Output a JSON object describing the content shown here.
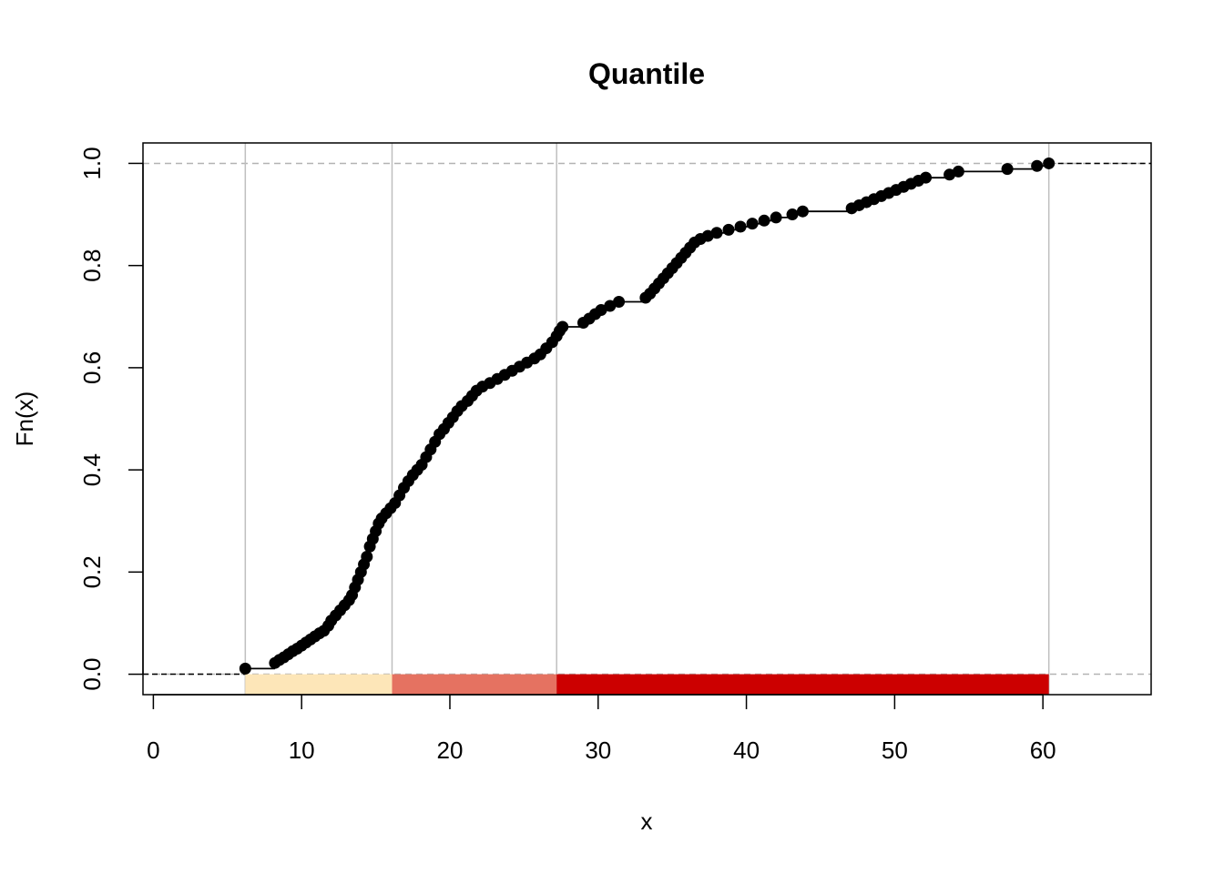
{
  "chart_data": {
    "type": "ecdf",
    "title": "Quantile",
    "xlabel": "x",
    "ylabel": "Fn(x)",
    "xlim": [
      -0.7,
      67.3
    ],
    "ylim": [
      -0.04,
      1.04
    ],
    "x_ticks": [
      0,
      10,
      20,
      30,
      40,
      50,
      60
    ],
    "x_tick_labels": [
      "0",
      "10",
      "20",
      "30",
      "40",
      "50",
      "60"
    ],
    "y_ticks": [
      0.0,
      0.2,
      0.4,
      0.6,
      0.8,
      1.0
    ],
    "y_tick_labels": [
      "0.0",
      "0.2",
      "0.4",
      "0.6",
      "0.8",
      "1.0"
    ],
    "reference_lines_y": [
      0.0,
      1.0
    ],
    "breaks": [
      6.2,
      16.1,
      27.2,
      60.4
    ],
    "class_colors": [
      "#FDE6B8",
      "#E57261",
      "#CC0000"
    ],
    "points": [
      [
        6.2,
        0.011
      ],
      [
        8.2,
        0.022
      ],
      [
        8.5,
        0.028
      ],
      [
        8.8,
        0.033
      ],
      [
        9.1,
        0.039
      ],
      [
        9.4,
        0.045
      ],
      [
        9.7,
        0.05
      ],
      [
        10.0,
        0.056
      ],
      [
        10.3,
        0.062
      ],
      [
        10.6,
        0.068
      ],
      [
        10.9,
        0.074
      ],
      [
        11.2,
        0.08
      ],
      [
        11.5,
        0.085
      ],
      [
        11.8,
        0.095
      ],
      [
        12.0,
        0.105
      ],
      [
        12.3,
        0.115
      ],
      [
        12.6,
        0.125
      ],
      [
        12.9,
        0.135
      ],
      [
        13.2,
        0.145
      ],
      [
        13.4,
        0.155
      ],
      [
        13.6,
        0.17
      ],
      [
        13.8,
        0.185
      ],
      [
        14.0,
        0.2
      ],
      [
        14.2,
        0.215
      ],
      [
        14.4,
        0.23
      ],
      [
        14.6,
        0.25
      ],
      [
        14.8,
        0.265
      ],
      [
        15.0,
        0.28
      ],
      [
        15.2,
        0.295
      ],
      [
        15.4,
        0.305
      ],
      [
        15.7,
        0.315
      ],
      [
        16.0,
        0.325
      ],
      [
        16.3,
        0.335
      ],
      [
        16.6,
        0.35
      ],
      [
        16.9,
        0.365
      ],
      [
        17.2,
        0.378
      ],
      [
        17.5,
        0.39
      ],
      [
        17.8,
        0.4
      ],
      [
        18.1,
        0.41
      ],
      [
        18.4,
        0.425
      ],
      [
        18.7,
        0.44
      ],
      [
        19.0,
        0.455
      ],
      [
        19.3,
        0.47
      ],
      [
        19.6,
        0.48
      ],
      [
        19.9,
        0.492
      ],
      [
        20.2,
        0.503
      ],
      [
        20.5,
        0.515
      ],
      [
        20.8,
        0.525
      ],
      [
        21.2,
        0.535
      ],
      [
        21.5,
        0.545
      ],
      [
        21.8,
        0.555
      ],
      [
        22.2,
        0.563
      ],
      [
        22.7,
        0.57
      ],
      [
        23.2,
        0.578
      ],
      [
        23.7,
        0.586
      ],
      [
        24.2,
        0.594
      ],
      [
        24.7,
        0.602
      ],
      [
        25.2,
        0.61
      ],
      [
        25.7,
        0.618
      ],
      [
        26.1,
        0.626
      ],
      [
        26.5,
        0.638
      ],
      [
        26.9,
        0.65
      ],
      [
        27.2,
        0.662
      ],
      [
        27.4,
        0.672
      ],
      [
        27.6,
        0.68
      ],
      [
        29.0,
        0.688
      ],
      [
        29.4,
        0.696
      ],
      [
        29.8,
        0.705
      ],
      [
        30.2,
        0.713
      ],
      [
        30.8,
        0.721
      ],
      [
        31.4,
        0.729
      ],
      [
        33.2,
        0.737
      ],
      [
        33.5,
        0.745
      ],
      [
        33.8,
        0.755
      ],
      [
        34.1,
        0.765
      ],
      [
        34.4,
        0.775
      ],
      [
        34.7,
        0.785
      ],
      [
        35.0,
        0.795
      ],
      [
        35.3,
        0.805
      ],
      [
        35.6,
        0.815
      ],
      [
        35.9,
        0.825
      ],
      [
        36.2,
        0.835
      ],
      [
        36.5,
        0.845
      ],
      [
        36.9,
        0.852
      ],
      [
        37.4,
        0.858
      ],
      [
        38.0,
        0.864
      ],
      [
        38.8,
        0.87
      ],
      [
        39.6,
        0.876
      ],
      [
        40.4,
        0.882
      ],
      [
        41.2,
        0.888
      ],
      [
        42.0,
        0.894
      ],
      [
        43.1,
        0.9
      ],
      [
        43.8,
        0.906
      ],
      [
        47.1,
        0.912
      ],
      [
        47.6,
        0.918
      ],
      [
        48.1,
        0.924
      ],
      [
        48.6,
        0.93
      ],
      [
        49.1,
        0.936
      ],
      [
        49.6,
        0.942
      ],
      [
        50.1,
        0.948
      ],
      [
        50.6,
        0.954
      ],
      [
        51.1,
        0.96
      ],
      [
        51.6,
        0.966
      ],
      [
        52.1,
        0.972
      ],
      [
        53.7,
        0.978
      ],
      [
        54.3,
        0.984
      ],
      [
        57.6,
        0.989
      ],
      [
        59.6,
        0.995
      ],
      [
        60.4,
        1.0
      ]
    ]
  }
}
